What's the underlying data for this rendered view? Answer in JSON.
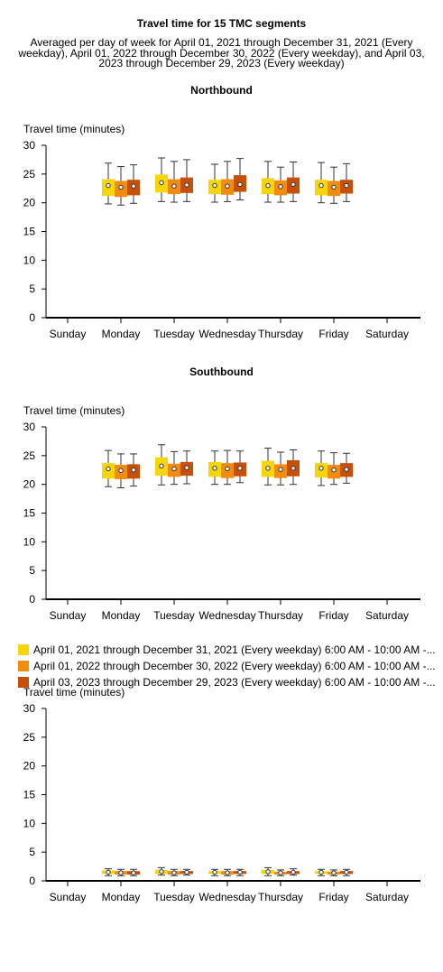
{
  "chart_data": {
    "type": "box",
    "title": "Travel time for 15 TMC segments",
    "subtitle": "Averaged per day of week for April 01, 2021 through December 31, 2021 (Every weekday), April 01, 2022 through December 30, 2022 (Every weekday), and April 03, 2023 through December 29, 2023 (Every weekday)",
    "categories": [
      "Sunday",
      "Monday",
      "Tuesday",
      "Wednesday",
      "Thursday",
      "Friday",
      "Saturday"
    ],
    "series": [
      {
        "name": "April 01, 2021 through December 31, 2021 (Every weekday) 6:00 AM - 10:00 AM -...",
        "color": "#f6d50a"
      },
      {
        "name": "April 01, 2022 through December 30, 2022 (Every weekday) 6:00 AM - 10:00 AM -...",
        "color": "#f28c10"
      },
      {
        "name": "April 03, 2023 through December 29, 2023 (Every weekday) 6:00 AM - 10:00 AM -...",
        "color": "#c75009"
      }
    ],
    "panels": [
      {
        "title": "Northbound",
        "ylabel": "Travel time (minutes)",
        "ylim": [
          0,
          30
        ],
        "yticks": [
          0,
          5,
          10,
          15,
          20,
          25,
          30
        ],
        "boxes": {
          "Monday": [
            [
              19.8,
              21.2,
              23.0,
              24.1,
              26.9
            ],
            [
              19.6,
              21.0,
              22.7,
              23.8,
              26.3
            ],
            [
              19.9,
              21.3,
              22.9,
              24.0,
              26.6
            ]
          ],
          "Tuesday": [
            [
              20.2,
              21.8,
              23.5,
              24.9,
              27.8
            ],
            [
              20.1,
              21.5,
              22.9,
              24.1,
              27.2
            ],
            [
              20.2,
              21.7,
              23.1,
              24.4,
              27.5
            ]
          ],
          "Wednesday": [
            [
              20.1,
              21.5,
              23.0,
              24.0,
              26.7
            ],
            [
              20.2,
              21.4,
              22.9,
              24.1,
              27.2
            ],
            [
              20.5,
              21.9,
              23.2,
              24.8,
              27.7
            ]
          ],
          "Thursday": [
            [
              20.1,
              21.5,
              23.0,
              24.3,
              27.2
            ],
            [
              20.1,
              21.3,
              22.8,
              23.9,
              26.2
            ],
            [
              20.2,
              21.6,
              23.2,
              24.4,
              27.1
            ]
          ],
          "Friday": [
            [
              20.0,
              21.3,
              23.0,
              24.0,
              27.0
            ],
            [
              19.9,
              21.2,
              22.7,
              23.8,
              26.2
            ],
            [
              20.2,
              21.6,
              23.0,
              24.0,
              26.8
            ]
          ]
        }
      },
      {
        "title": "Southbound",
        "ylabel": "Travel time (minutes)",
        "ylim": [
          0,
          30
        ],
        "yticks": [
          0,
          5,
          10,
          15,
          20,
          25,
          30
        ],
        "boxes": {
          "Monday": [
            [
              19.6,
              21.0,
              22.7,
              23.7,
              25.9
            ],
            [
              19.4,
              20.9,
              22.4,
              23.4,
              25.3
            ],
            [
              19.7,
              21.0,
              22.5,
              23.5,
              25.3
            ]
          ],
          "Tuesday": [
            [
              19.9,
              21.5,
              23.2,
              24.7,
              26.9
            ],
            [
              20.0,
              21.3,
              22.7,
              23.6,
              25.7
            ],
            [
              20.1,
              21.5,
              22.9,
              23.9,
              25.8
            ]
          ],
          "Wednesday": [
            [
              20.0,
              21.3,
              22.8,
              23.9,
              25.8
            ],
            [
              20.0,
              21.1,
              22.7,
              23.7,
              25.9
            ],
            [
              20.3,
              21.4,
              22.8,
              23.8,
              25.8
            ]
          ],
          "Thursday": [
            [
              19.9,
              21.3,
              22.8,
              24.1,
              26.3
            ],
            [
              19.9,
              21.1,
              22.6,
              23.5,
              25.6
            ],
            [
              20.0,
              21.4,
              22.8,
              24.2,
              26.0
            ]
          ],
          "Friday": [
            [
              19.8,
              21.2,
              22.8,
              23.7,
              25.8
            ],
            [
              20.0,
              21.0,
              22.5,
              23.4,
              25.5
            ],
            [
              20.2,
              21.3,
              22.6,
              23.7,
              25.4
            ]
          ]
        }
      },
      {
        "title": "",
        "ylabel": "Travel time (minutes)",
        "ylim": [
          0,
          30
        ],
        "yticks": [
          0,
          5,
          10,
          15,
          20,
          25,
          30
        ],
        "boxes": {
          "Monday": [
            [
              0.9,
              1.2,
              1.5,
              1.8,
              2.1
            ],
            [
              0.9,
              1.1,
              1.4,
              1.7,
              2.0
            ],
            [
              0.9,
              1.1,
              1.4,
              1.7,
              2.0
            ]
          ],
          "Tuesday": [
            [
              1.0,
              1.2,
              1.6,
              1.9,
              2.3
            ],
            [
              0.9,
              1.1,
              1.4,
              1.7,
              2.0
            ],
            [
              1.0,
              1.2,
              1.5,
              1.7,
              2.0
            ]
          ],
          "Wednesday": [
            [
              0.9,
              1.2,
              1.5,
              1.7,
              2.0
            ],
            [
              0.9,
              1.1,
              1.4,
              1.7,
              2.0
            ],
            [
              0.9,
              1.2,
              1.5,
              1.7,
              2.0
            ]
          ],
          "Thursday": [
            [
              0.9,
              1.2,
              1.6,
              1.9,
              2.3
            ],
            [
              0.9,
              1.1,
              1.4,
              1.6,
              1.9
            ],
            [
              1.0,
              1.2,
              1.5,
              1.7,
              2.1
            ]
          ],
          "Friday": [
            [
              0.9,
              1.2,
              1.5,
              1.7,
              2.0
            ],
            [
              0.9,
              1.1,
              1.4,
              1.6,
              1.9
            ],
            [
              0.9,
              1.2,
              1.5,
              1.7,
              2.0
            ]
          ]
        }
      }
    ],
    "legend_position": "between-panels",
    "grid": false
  }
}
